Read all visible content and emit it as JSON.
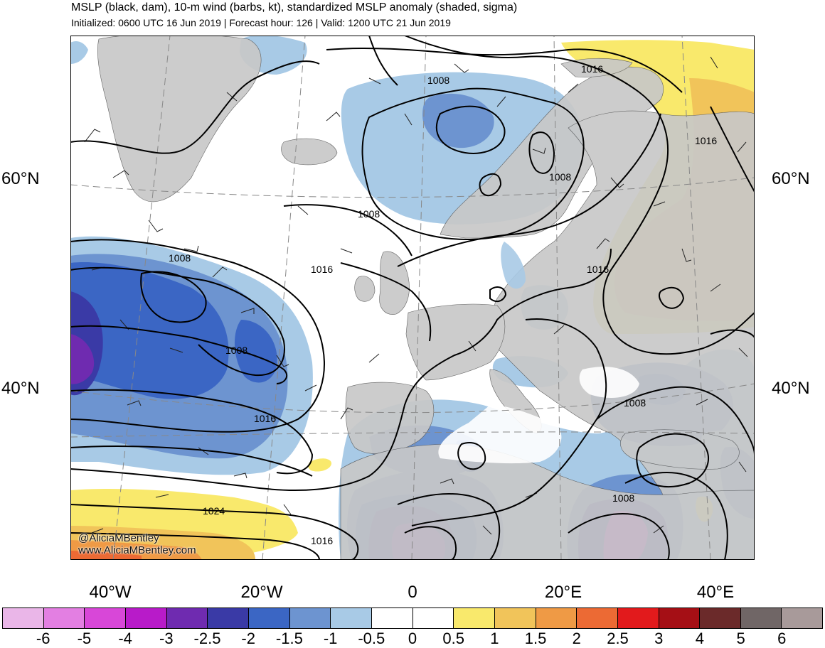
{
  "header": {
    "title": "MSLP (black, dam), 10-m wind (barbs, kt), standardized MSLP anomaly (shaded, sigma)",
    "subtitle": "Initialized: 0600 UTC 16 Jun 2019 | Forecast hour: 126 | Valid: 1200 UTC 21 Jun 2019"
  },
  "axes": {
    "lat_left": [
      "60°N",
      "40°N"
    ],
    "lat_right": [
      "60°N",
      "40°N"
    ],
    "lon": [
      "40°W",
      "20°W",
      "0",
      "20°E",
      "40°E"
    ]
  },
  "credit": {
    "handle": "@AliciaMBentley",
    "url": "www.AliciaMBentley.com"
  },
  "isobar_labels": [
    "1008",
    "1016",
    "1008",
    "1016",
    "1008",
    "1008",
    "1016",
    "1016",
    "1008",
    "1016",
    "1008",
    "1008",
    "1024",
    "1016"
  ],
  "colorbar": {
    "colors": [
      "#eab6e8",
      "#e37fe2",
      "#d847d8",
      "#b81bc9",
      "#6f2bb0",
      "#3a3aa6",
      "#3b66c4",
      "#6d94d0",
      "#a8cae6",
      "#ffffff",
      "#ffffff",
      "#f9e96c",
      "#f1c45a",
      "#ef9a45",
      "#ec6a34",
      "#e21a1c",
      "#a50f15",
      "#6b2a2a",
      "#706666",
      "#a89a9a"
    ],
    "labels": [
      "-6",
      "-5",
      "-4",
      "-3",
      "-2.5",
      "-2",
      "-1.5",
      "-1",
      "-0.5",
      "0",
      "0.5",
      "1",
      "1.5",
      "2",
      "2.5",
      "3",
      "4",
      "5",
      "6"
    ]
  }
}
